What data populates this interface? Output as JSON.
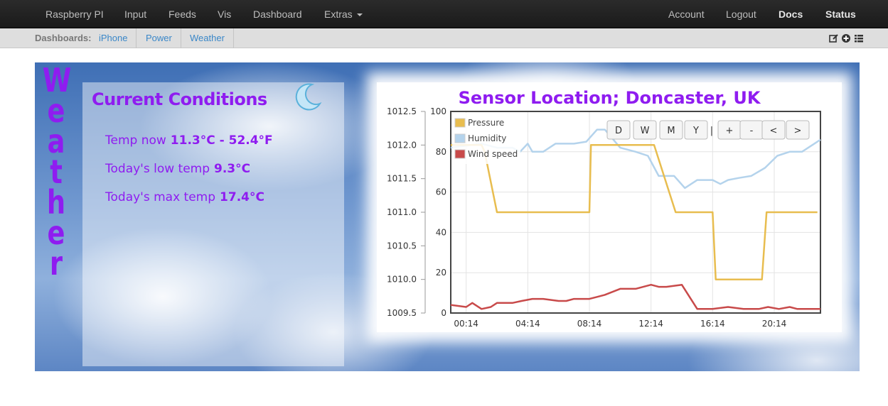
{
  "navbar": {
    "left_items": [
      "Raspberry PI",
      "Input",
      "Feeds",
      "Vis",
      "Dashboard",
      "Extras"
    ],
    "right_items": [
      "Account",
      "Logout",
      "Docs",
      "Status"
    ]
  },
  "dashbar": {
    "label": "Dashboards:",
    "links": [
      "iPhone",
      "Power",
      "Weather"
    ],
    "tools": [
      "edit-icon",
      "add-icon",
      "list-icon"
    ]
  },
  "weather_letters": [
    "W",
    "e",
    "a",
    "t",
    "h",
    "e",
    "r"
  ],
  "conditions": {
    "title": "Current Conditions",
    "weather_icon": "moon-icon",
    "temp_now_label": "Temp now",
    "temp_now_value": "11.3°C - 52.4°F",
    "low_label": "Today's low temp",
    "low_value": "9.3°C",
    "max_label": "Today's max temp",
    "max_value": "17.4°C"
  },
  "sensor": {
    "title": "Sensor Location; Doncaster, UK"
  },
  "chart_controls": [
    "D",
    "W",
    "M",
    "Y",
    "+",
    "-",
    "<",
    ">"
  ],
  "colors": {
    "accent_purple": "#8f1cf0",
    "pressure": "#e8bd4f",
    "humidity": "#b4d3ec",
    "wind": "#c84a4a"
  },
  "chart_data": {
    "type": "line",
    "x_labels": [
      "00:14",
      "04:14",
      "08:14",
      "12:14",
      "16:14",
      "20:14"
    ],
    "x_range_hours": [
      -1,
      23
    ],
    "left_axis": {
      "series": "Pressure",
      "ylim": [
        1009.5,
        1012.5
      ],
      "ticks": [
        "1012.5",
        "1012.0",
        "1011.5",
        "1011.0",
        "1010.5",
        "1010.0",
        "1009.5"
      ]
    },
    "right_axis": {
      "ylim": [
        0,
        100
      ],
      "ticks": [
        "100",
        "80",
        "60",
        "40",
        "20",
        "0"
      ]
    },
    "grid": true,
    "legend_position": "top-left",
    "series": [
      {
        "name": "Pressure",
        "axis": "left",
        "x": [
          -1,
          1,
          1.2,
          2,
          6,
          8,
          8.1,
          12,
          12.2,
          13.6,
          16,
          16.2,
          19.2,
          19.5,
          22.8
        ],
        "values": [
          1012.0,
          1012.0,
          1011.9,
          1011.0,
          1011.0,
          1011.0,
          1012.0,
          1012.0,
          1012.0,
          1011.0,
          1011.0,
          1010.0,
          1010.0,
          1011.0,
          1011.0
        ]
      },
      {
        "name": "Humidity",
        "axis": "right",
        "x": [
          -1,
          1,
          2,
          3,
          3.5,
          4,
          4.3,
          5,
          5.8,
          6.5,
          7,
          7.8,
          8.5,
          9,
          10,
          11,
          11.8,
          12.5,
          13.5,
          14.2,
          15,
          16,
          16.5,
          17,
          17.7,
          18.5,
          19.4,
          20.2,
          21,
          21.8,
          22.4,
          23
        ],
        "values": [
          82,
          84,
          82,
          82,
          80,
          84,
          80,
          80,
          84,
          84,
          84,
          85,
          91,
          91,
          82,
          80,
          78,
          68,
          68,
          62,
          66,
          66,
          64,
          66,
          67,
          68,
          72,
          78,
          80,
          80,
          83,
          86
        ]
      },
      {
        "name": "Wind speed",
        "axis": "right",
        "x": [
          -1,
          0,
          0.4,
          1,
          1.6,
          2,
          3,
          3.6,
          4.3,
          5,
          6,
          6.5,
          7,
          8,
          8.5,
          9,
          10,
          11,
          12,
          12.5,
          13,
          14,
          15,
          16,
          17,
          18,
          19,
          19.6,
          20.3,
          21,
          21.5,
          22.2,
          23
        ],
        "values": [
          4,
          3,
          5,
          2,
          3,
          5,
          5,
          6,
          7,
          7,
          6,
          6,
          7,
          7,
          8,
          9,
          12,
          12,
          14,
          13,
          13,
          14,
          2,
          2,
          3,
          2,
          2,
          3,
          2,
          3,
          2,
          2,
          2
        ]
      }
    ]
  }
}
